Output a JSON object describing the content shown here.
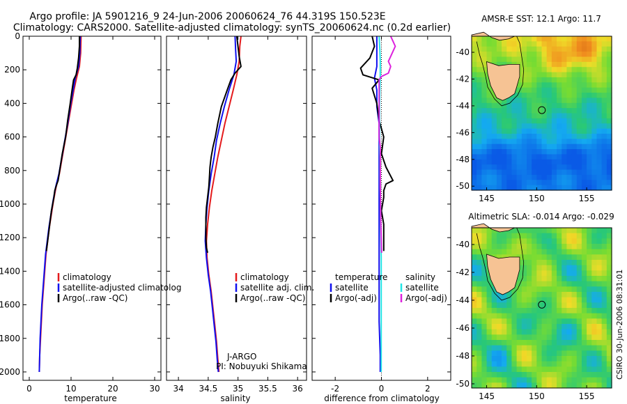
{
  "title": {
    "line1": "Argo profile: JA 5901216_9 24-Jun-2006 20060624_76 44.319S 150.523E",
    "line2": "Climatology: CARS2000. Satellite-adjusted climatology: synTS_20060624.nc (0.2d earlier)"
  },
  "credit": "CSIRO 30-Jun-2006 08:31:01",
  "colors": {
    "red": "#e41a1c",
    "blue": "#1010ee",
    "black": "#000000",
    "cyan": "#22e5e5",
    "magenta": "#dd22dd",
    "land": "#f6c394"
  },
  "depth_ticks": [
    "0",
    "200",
    "400",
    "600",
    "800",
    "1000",
    "1200",
    "1400",
    "1600",
    "1800",
    "2000"
  ],
  "chart_data": [
    {
      "id": "temperature",
      "type": "line",
      "xlabel": "temperature",
      "xlim": [
        -1.5,
        31.5
      ],
      "ylim": [
        2050,
        0
      ],
      "xticks": [
        "0",
        "10",
        "20",
        "30"
      ],
      "legend": [
        "climatology",
        "satellite-adjusted climatolog",
        "Argo(..raw -QC)"
      ],
      "series": [
        {
          "name": "climatology",
          "color": "#e41a1c",
          "points": [
            [
              12.4,
              0
            ],
            [
              12.3,
              100
            ],
            [
              12.0,
              180
            ],
            [
              11.3,
              250
            ],
            [
              10.7,
              320
            ],
            [
              10.0,
              420
            ],
            [
              9.3,
              520
            ],
            [
              8.6,
              620
            ],
            [
              7.9,
              720
            ],
            [
              7.2,
              820
            ],
            [
              6.4,
              900
            ],
            [
              5.8,
              980
            ],
            [
              5.3,
              1060
            ],
            [
              4.8,
              1140
            ],
            [
              4.4,
              1220
            ],
            [
              4.0,
              1300
            ],
            [
              3.7,
              1400
            ],
            [
              3.4,
              1500
            ],
            [
              3.1,
              1600
            ],
            [
              2.9,
              1700
            ],
            [
              2.7,
              1800
            ],
            [
              2.5,
              1900
            ],
            [
              2.4,
              2000
            ]
          ]
        },
        {
          "name": "satellite-adjusted climatology",
          "color": "#1010ee",
          "points": [
            [
              12.2,
              0
            ],
            [
              12.1,
              100
            ],
            [
              11.8,
              180
            ],
            [
              11.0,
              250
            ],
            [
              10.5,
              320
            ],
            [
              9.8,
              420
            ],
            [
              9.2,
              520
            ],
            [
              8.5,
              620
            ],
            [
              7.8,
              720
            ],
            [
              7.1,
              820
            ],
            [
              6.3,
              900
            ],
            [
              5.7,
              980
            ],
            [
              5.2,
              1060
            ],
            [
              4.7,
              1140
            ],
            [
              4.3,
              1220
            ],
            [
              3.9,
              1300
            ],
            [
              3.6,
              1400
            ],
            [
              3.3,
              1500
            ],
            [
              3.0,
              1600
            ],
            [
              2.8,
              1700
            ],
            [
              2.6,
              1800
            ],
            [
              2.5,
              1900
            ],
            [
              2.4,
              2000
            ]
          ]
        },
        {
          "name": "Argo(..raw -QC)",
          "color": "#000000",
          "points": [
            [
              12.0,
              0
            ],
            [
              12.0,
              60
            ],
            [
              11.8,
              130
            ],
            [
              11.5,
              190
            ],
            [
              11.2,
              230
            ],
            [
              10.6,
              260
            ],
            [
              10.3,
              310
            ],
            [
              9.8,
              400
            ],
            [
              9.2,
              500
            ],
            [
              8.7,
              600
            ],
            [
              7.9,
              700
            ],
            [
              7.4,
              780
            ],
            [
              6.9,
              860
            ],
            [
              6.6,
              880
            ],
            [
              6.1,
              920
            ],
            [
              5.9,
              960
            ],
            [
              5.3,
              1040
            ],
            [
              4.9,
              1120
            ],
            [
              4.5,
              1200
            ],
            [
              4.1,
              1280
            ]
          ]
        }
      ]
    },
    {
      "id": "salinity",
      "type": "line",
      "xlabel": "salinity",
      "xlim": [
        33.8,
        36.15
      ],
      "ylim": [
        2050,
        0
      ],
      "xticks": [
        "34",
        "34.5",
        "35",
        "35.5",
        "36"
      ],
      "legend": [
        "climatology",
        "satellite adj. clim.",
        "Argo(..raw -QC)"
      ],
      "annotation": [
        "J-ARGO",
        "PI: Nobuyuki Shikama"
      ],
      "series": [
        {
          "name": "climatology",
          "color": "#e41a1c",
          "points": [
            [
              35.05,
              0
            ],
            [
              35.03,
              60
            ],
            [
              35.02,
              150
            ],
            [
              34.98,
              230
            ],
            [
              34.92,
              320
            ],
            [
              34.85,
              420
            ],
            [
              34.78,
              520
            ],
            [
              34.72,
              620
            ],
            [
              34.66,
              720
            ],
            [
              34.61,
              820
            ],
            [
              34.56,
              920
            ],
            [
              34.52,
              1020
            ],
            [
              34.49,
              1120
            ],
            [
              34.47,
              1220
            ],
            [
              34.48,
              1320
            ],
            [
              34.51,
              1420
            ],
            [
              34.55,
              1520
            ],
            [
              34.58,
              1620
            ],
            [
              34.61,
              1720
            ],
            [
              34.64,
              1820
            ],
            [
              34.66,
              1920
            ],
            [
              34.68,
              2000
            ]
          ]
        },
        {
          "name": "satellite adj. clim.",
          "color": "#1010ee",
          "points": [
            [
              34.95,
              0
            ],
            [
              34.96,
              80
            ],
            [
              34.97,
              150
            ],
            [
              34.93,
              230
            ],
            [
              34.85,
              320
            ],
            [
              34.77,
              420
            ],
            [
              34.7,
              520
            ],
            [
              34.64,
              620
            ],
            [
              34.6,
              720
            ],
            [
              34.55,
              820
            ],
            [
              34.51,
              920
            ],
            [
              34.48,
              1020
            ],
            [
              34.46,
              1120
            ],
            [
              34.45,
              1220
            ],
            [
              34.47,
              1320
            ],
            [
              34.5,
              1420
            ],
            [
              34.54,
              1520
            ],
            [
              34.57,
              1620
            ],
            [
              34.6,
              1720
            ],
            [
              34.63,
              1820
            ],
            [
              34.65,
              1920
            ],
            [
              34.67,
              2000
            ]
          ]
        },
        {
          "name": "Argo(..raw -QC)",
          "color": "#000000",
          "points": [
            [
              34.98,
              0
            ],
            [
              35.0,
              60
            ],
            [
              35.02,
              120
            ],
            [
              35.05,
              180
            ],
            [
              34.95,
              220
            ],
            [
              34.88,
              260
            ],
            [
              34.82,
              320
            ],
            [
              34.72,
              420
            ],
            [
              34.66,
              520
            ],
            [
              34.62,
              600
            ],
            [
              34.58,
              660
            ],
            [
              34.55,
              720
            ],
            [
              34.53,
              780
            ],
            [
              34.52,
              840
            ],
            [
              34.51,
              900
            ],
            [
              34.49,
              960
            ],
            [
              34.47,
              1020
            ],
            [
              34.46,
              1080
            ],
            [
              34.46,
              1140
            ],
            [
              34.46,
              1200
            ],
            [
              34.47,
              1260
            ],
            [
              34.49,
              1290
            ]
          ]
        }
      ]
    },
    {
      "id": "difference",
      "type": "line",
      "xlabel": "difference from climatology",
      "xlim": [
        -3.0,
        3.0
      ],
      "ylim": [
        2050,
        0
      ],
      "xticks": [
        "-2",
        "0",
        "2"
      ],
      "legend_left": [
        "temperature",
        "satellite",
        "Argo(-adj)"
      ],
      "legend_right": [
        "salinity",
        "satellite",
        "Argo(-adj)"
      ],
      "series": [
        {
          "name": "temperature satellite",
          "color": "#1010ee",
          "points": [
            [
              -0.2,
              0
            ],
            [
              -0.2,
              100
            ],
            [
              -0.2,
              180
            ],
            [
              -0.3,
              250
            ],
            [
              -0.2,
              320
            ],
            [
              -0.2,
              420
            ],
            [
              -0.1,
              520
            ],
            [
              -0.1,
              620
            ],
            [
              -0.1,
              720
            ],
            [
              -0.1,
              820
            ],
            [
              -0.1,
              900
            ],
            [
              -0.1,
              980
            ],
            [
              -0.1,
              1060
            ],
            [
              -0.1,
              1140
            ],
            [
              -0.1,
              1300
            ],
            [
              -0.1,
              1500
            ],
            [
              -0.1,
              1700
            ],
            [
              -0.05,
              1900
            ],
            [
              -0.05,
              2000
            ]
          ]
        },
        {
          "name": "temperature Argo(-adj)",
          "color": "#000000",
          "points": [
            [
              -0.4,
              0
            ],
            [
              -0.3,
              60
            ],
            [
              -0.5,
              130
            ],
            [
              -0.9,
              190
            ],
            [
              -0.8,
              230
            ],
            [
              -0.1,
              260
            ],
            [
              -0.4,
              310
            ],
            [
              -0.2,
              400
            ],
            [
              -0.1,
              500
            ],
            [
              0.1,
              600
            ],
            [
              0.0,
              700
            ],
            [
              0.2,
              780
            ],
            [
              0.5,
              860
            ],
            [
              0.2,
              880
            ],
            [
              0.1,
              920
            ],
            [
              0.1,
              960
            ],
            [
              0.0,
              1040
            ],
            [
              0.1,
              1120
            ],
            [
              0.1,
              1200
            ],
            [
              0.1,
              1280
            ]
          ]
        },
        {
          "name": "salinity satellite",
          "color": "#22e5e5",
          "points": [
            [
              -0.1,
              0
            ],
            [
              -0.07,
              80
            ],
            [
              -0.05,
              150
            ],
            [
              -0.05,
              230
            ],
            [
              -0.07,
              320
            ],
            [
              -0.08,
              420
            ],
            [
              -0.08,
              520
            ],
            [
              -0.08,
              620
            ],
            [
              -0.06,
              720
            ],
            [
              -0.06,
              820
            ],
            [
              -0.05,
              920
            ],
            [
              -0.04,
              1020
            ],
            [
              -0.03,
              1120
            ],
            [
              -0.02,
              1220
            ],
            [
              -0.01,
              1320
            ],
            [
              -0.01,
              1420
            ],
            [
              -0.01,
              1520
            ],
            [
              -0.01,
              1620
            ],
            [
              -0.01,
              1720
            ],
            [
              -0.01,
              1820
            ],
            [
              -0.01,
              1920
            ],
            [
              -0.01,
              2000
            ]
          ]
        },
        {
          "name": "salinity Argo(-adj)",
          "color": "#dd22dd",
          "points": [
            [
              0.4,
              0
            ],
            [
              0.5,
              30
            ],
            [
              0.6,
              60
            ],
            [
              0.5,
              90
            ],
            [
              0.4,
              120
            ],
            [
              0.3,
              150
            ],
            [
              0.4,
              180
            ],
            [
              0.3,
              220
            ],
            [
              0.0,
              240
            ],
            [
              -0.1,
              260
            ],
            [
              -0.1,
              320
            ],
            [
              -0.1,
              420
            ],
            [
              -0.1,
              520
            ],
            [
              -0.1,
              600
            ],
            [
              -0.05,
              660
            ],
            [
              -0.05,
              720
            ],
            [
              -0.05,
              780
            ],
            [
              -0.05,
              840
            ],
            [
              -0.05,
              900
            ],
            [
              -0.04,
              960
            ],
            [
              -0.04,
              1020
            ],
            [
              -0.03,
              1080
            ],
            [
              -0.02,
              1140
            ],
            [
              -0.01,
              1200
            ],
            [
              0.0,
              1260
            ],
            [
              0.01,
              1290
            ]
          ]
        }
      ]
    },
    {
      "id": "sst-map",
      "type": "heatmap",
      "title": "AMSR-E SST: 12.1 Argo: 11.7",
      "lon_range": [
        143.5,
        157.5
      ],
      "lat_range": [
        -50.3,
        -38.8
      ],
      "xticks": [
        "145",
        "150",
        "155"
      ],
      "yticks": [
        "-40",
        "-42",
        "-44",
        "-46",
        "-48",
        "-50"
      ],
      "marker": [
        150.52,
        -44.32
      ]
    },
    {
      "id": "sla-map",
      "type": "heatmap",
      "title": "Altimetric SLA: -0.014 Argo: -0.029",
      "lon_range": [
        143.5,
        157.5
      ],
      "lat_range": [
        -50.3,
        -38.8
      ],
      "xticks": [
        "145",
        "150",
        "155"
      ],
      "yticks": [
        "-40",
        "-42",
        "-44",
        "-46",
        "-48",
        "-50"
      ],
      "marker": [
        150.52,
        -44.32
      ]
    }
  ]
}
